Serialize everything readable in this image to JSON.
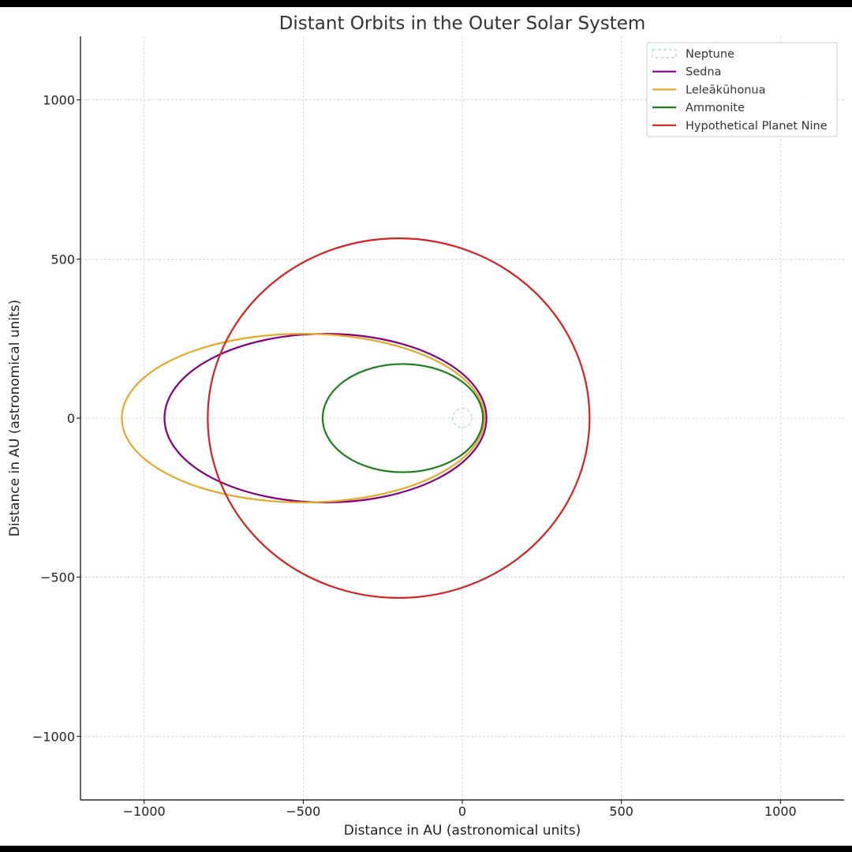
{
  "chart_data": {
    "type": "line",
    "title": "Distant Orbits in the Outer Solar System",
    "xlabel": "Distance in AU (astronomical units)",
    "ylabel": "Distance in AU (astronomical units)",
    "xlim": [
      -1200,
      1200
    ],
    "ylim": [
      -1200,
      1200
    ],
    "xticks": [
      -1000,
      -500,
      0,
      500,
      1000
    ],
    "yticks": [
      -1000,
      -500,
      0,
      500,
      1000
    ],
    "xtick_labels": [
      "−1000",
      "−500",
      "0",
      "500",
      "1000"
    ],
    "ytick_labels": [
      "−1000",
      "−500",
      "0",
      "500",
      "1000"
    ],
    "grid": true,
    "legend_position": "top-right",
    "series": [
      {
        "name": "Neptune",
        "shape": "circle",
        "center": [
          0,
          0
        ],
        "semi_major": 30,
        "semi_minor": 30,
        "color": "#a9d8e6",
        "dashed": true
      },
      {
        "name": "Sedna",
        "shape": "ellipse",
        "center": [
          -430,
          0
        ],
        "semi_major": 506,
        "semi_minor": 265,
        "color": "#800080",
        "dashed": false
      },
      {
        "name": "Leleākūhonua",
        "shape": "ellipse",
        "center": [
          -500,
          0
        ],
        "semi_major": 570,
        "semi_minor": 265,
        "color": "#e6a829",
        "dashed": false
      },
      {
        "name": "Ammonite",
        "shape": "ellipse",
        "center": [
          -187,
          0
        ],
        "semi_major": 252,
        "semi_minor": 170,
        "color": "#1a7f1a",
        "dashed": false
      },
      {
        "name": "Hypothetical Planet Nine",
        "shape": "ellipse",
        "center": [
          -200,
          0
        ],
        "semi_major": 600,
        "semi_minor": 565,
        "color": "#d42020",
        "dashed": false
      }
    ]
  }
}
